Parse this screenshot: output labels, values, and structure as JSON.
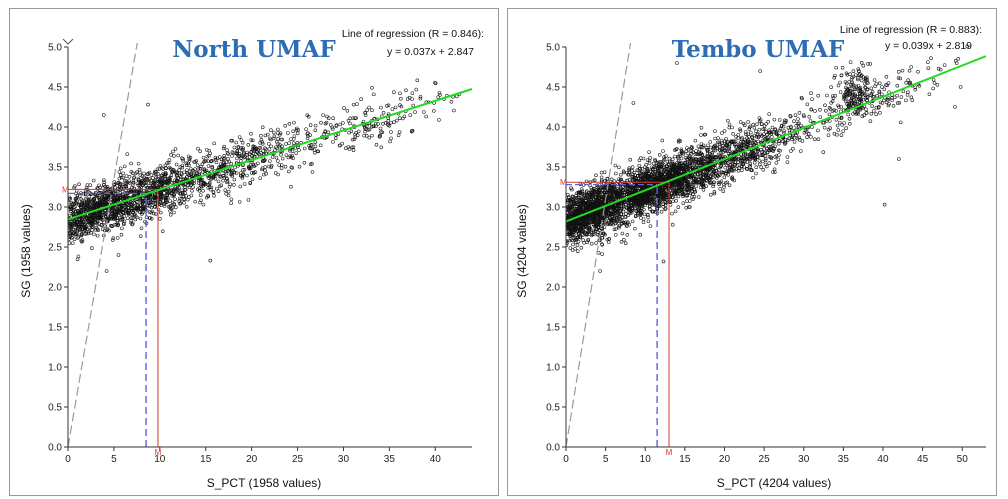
{
  "colors": {
    "title": "#2e6db4",
    "regression": "#1fdc1f",
    "median": "#d23a2a",
    "mean": "#5a63e0",
    "identity": "#9a9a9a",
    "points": "#111111"
  },
  "chart_data": [
    {
      "type": "scatter",
      "title": "North UMAF",
      "regression_label": "Line of regression (R = 0.846):",
      "regression_equation": "y = 0.037x + 2.847",
      "regression": {
        "slope": 0.037,
        "intercept": 2.847,
        "r": 0.846
      },
      "xlabel": "S_PCT (1958 values)",
      "ylabel": "SG (1958 values)",
      "xlim": [
        0,
        44
      ],
      "ylim": [
        0,
        5.0
      ],
      "xticks": [
        0,
        5,
        10,
        15,
        20,
        25,
        30,
        35,
        40
      ],
      "yticks": [
        0.0,
        0.5,
        1.0,
        1.5,
        2.0,
        2.5,
        3.0,
        3.5,
        4.0,
        4.5,
        5.0
      ],
      "n_values": 1958,
      "median_marker": {
        "x": 9.8,
        "y": 3.22,
        "label": "M"
      },
      "mean_marker": {
        "x": 8.5,
        "y": 3.17
      },
      "identity_slope": 0.67,
      "cluster_samples": [
        {
          "x": 2.5,
          "y": 2.95,
          "sx": 2.0,
          "n": 500
        },
        {
          "x": 8.0,
          "y": 3.15,
          "sx": 3.5,
          "n": 800
        },
        {
          "x": 18.0,
          "y": 3.55,
          "sx": 4.5,
          "n": 450
        },
        {
          "x": 32.0,
          "y": 4.05,
          "sx": 5.0,
          "n": 200
        }
      ],
      "outliers": [
        [
          4.2,
          2.2
        ],
        [
          5.5,
          2.4
        ],
        [
          15.5,
          2.33
        ],
        [
          8.7,
          4.28
        ],
        [
          3.9,
          4.15
        ],
        [
          40.5,
          4.4
        ]
      ]
    },
    {
      "type": "scatter",
      "title": "Tembo UMAF",
      "regression_label": "Line of regression (R = 0.883):",
      "regression_equation": "y = 0.039x + 2.819",
      "regression": {
        "slope": 0.039,
        "intercept": 2.819,
        "r": 0.883
      },
      "xlabel": "S_PCT (4204 values)",
      "ylabel": "SG (4204 values)",
      "xlim": [
        0,
        53
      ],
      "ylim": [
        0,
        5.0
      ],
      "xticks": [
        0,
        5,
        10,
        15,
        20,
        25,
        30,
        35,
        40,
        45,
        50
      ],
      "yticks": [
        0.0,
        0.5,
        1.0,
        1.5,
        2.0,
        2.5,
        3.0,
        3.5,
        4.0,
        4.5,
        5.0
      ],
      "n_values": 4204,
      "median_marker": {
        "x": 13.0,
        "y": 3.31,
        "label": "M"
      },
      "mean_marker": {
        "x": 11.5,
        "y": 3.28
      },
      "identity_slope": 0.62,
      "cluster_samples": [
        {
          "x": 3.0,
          "y": 2.95,
          "sx": 2.3,
          "n": 1000
        },
        {
          "x": 11.0,
          "y": 3.25,
          "sx": 4.0,
          "n": 1700
        },
        {
          "x": 22.0,
          "y": 3.7,
          "sx": 5.0,
          "n": 700
        },
        {
          "x": 36.5,
          "y": 4.4,
          "sx": 1.4,
          "n": 180
        },
        {
          "x": 40.0,
          "y": 4.35,
          "sx": 5.0,
          "n": 120
        }
      ],
      "outliers": [
        [
          4.3,
          2.2
        ],
        [
          12.3,
          2.32
        ],
        [
          40.2,
          3.03
        ],
        [
          42.0,
          3.6
        ],
        [
          49.8,
          4.5
        ],
        [
          14.0,
          4.8
        ],
        [
          8.5,
          4.3
        ],
        [
          24.5,
          4.7
        ]
      ]
    }
  ]
}
